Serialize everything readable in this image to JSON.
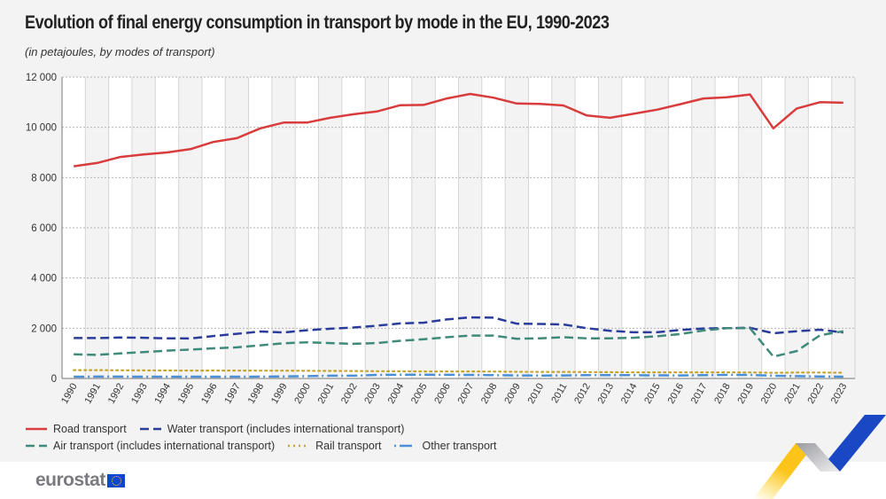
{
  "title": "Evolution of final energy consumption in transport by mode in the EU, 1990-2023",
  "subtitle": "(in petajoules, by modes of transport)",
  "logo": "eurostat",
  "chart_data": {
    "type": "line",
    "title": "Evolution of final energy consumption in transport by mode in the EU, 1990-2023",
    "subtitle": "(in petajoules, by modes of transport)",
    "ylim": [
      0,
      12000
    ],
    "yticks": [
      0,
      2000,
      4000,
      6000,
      8000,
      10000,
      12000
    ],
    "ytick_labels": [
      "0",
      "2 000",
      "4 000",
      "6 000",
      "8 000",
      "10 000",
      "12 000"
    ],
    "grid": true,
    "legend_position": "bottom-left",
    "categories": [
      "1990",
      "1991",
      "1992",
      "1993",
      "1994",
      "1995",
      "1996",
      "1997",
      "1998",
      "1999",
      "2000",
      "2001",
      "2002",
      "2003",
      "2004",
      "2005",
      "2006",
      "2007",
      "2008",
      "2009",
      "2010",
      "2011",
      "2012",
      "2013",
      "2014",
      "2015",
      "2016",
      "2017",
      "2018",
      "2019",
      "2020",
      "2021",
      "2022",
      "2023"
    ],
    "series": [
      {
        "name": "Road transport",
        "color": "#d83c3c",
        "style": "solid",
        "values": [
          8450,
          8580,
          8820,
          8920,
          9000,
          9130,
          9420,
          9570,
          9960,
          10190,
          10190,
          10380,
          10520,
          10630,
          10880,
          10890,
          11150,
          11330,
          11180,
          10950,
          10930,
          10870,
          10470,
          10380,
          10540,
          10700,
          10920,
          11150,
          11200,
          11310,
          9960,
          10750,
          11000,
          10980
        ]
      },
      {
        "name": "Water transport (includes international transport)",
        "color": "#2a3d9c",
        "style": "dash",
        "values": [
          1610,
          1610,
          1630,
          1620,
          1600,
          1590,
          1690,
          1780,
          1870,
          1830,
          1920,
          1980,
          2030,
          2100,
          2190,
          2220,
          2350,
          2430,
          2420,
          2180,
          2170,
          2150,
          2000,
          1900,
          1840,
          1840,
          1930,
          1990,
          2000,
          2020,
          1800,
          1880,
          1940,
          1830
        ]
      },
      {
        "name": "Air transport (includes international transport)",
        "color": "#3f8a7a",
        "style": "dash",
        "values": [
          960,
          940,
          1000,
          1050,
          1110,
          1150,
          1200,
          1240,
          1320,
          1400,
          1440,
          1410,
          1380,
          1410,
          1500,
          1560,
          1640,
          1710,
          1710,
          1580,
          1600,
          1640,
          1600,
          1600,
          1620,
          1680,
          1770,
          1910,
          2000,
          2000,
          870,
          1090,
          1720,
          1880
        ]
      },
      {
        "name": "Rail transport",
        "color": "#c6a52f",
        "style": "dot",
        "values": [
          330,
          330,
          325,
          320,
          318,
          315,
          315,
          315,
          312,
          310,
          305,
          300,
          295,
          290,
          285,
          280,
          280,
          278,
          275,
          265,
          262,
          260,
          255,
          250,
          245,
          245,
          245,
          245,
          243,
          240,
          225,
          235,
          235,
          230
        ]
      },
      {
        "name": "Other transport",
        "color": "#4a90d9",
        "style": "dashdot",
        "values": [
          70,
          75,
          75,
          70,
          70,
          70,
          70,
          70,
          75,
          80,
          90,
          110,
          110,
          140,
          150,
          150,
          145,
          140,
          130,
          120,
          115,
          120,
          130,
          130,
          130,
          125,
          120,
          130,
          140,
          140,
          110,
          90,
          80,
          70
        ]
      }
    ]
  }
}
